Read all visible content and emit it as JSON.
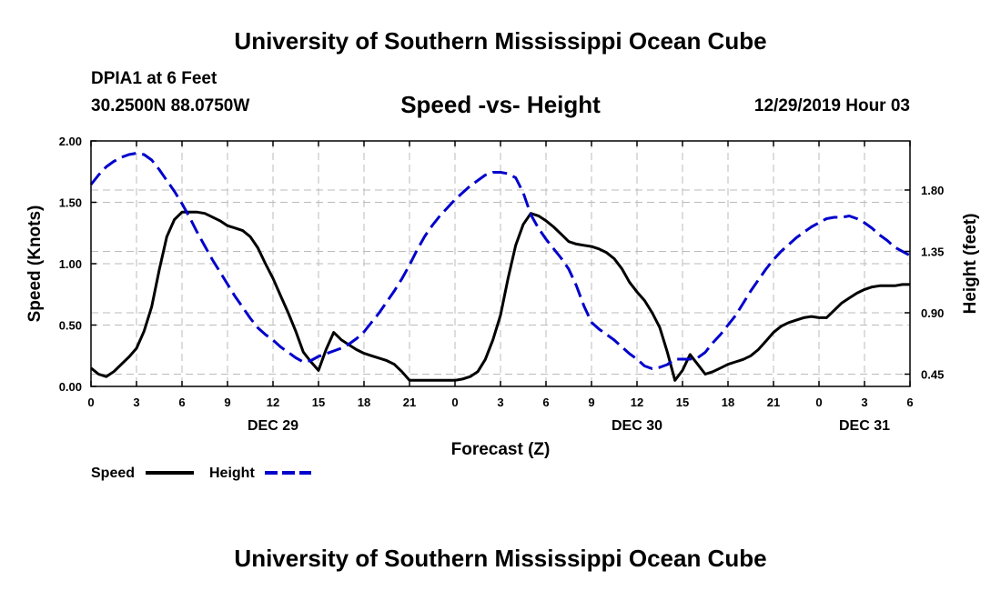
{
  "header": {
    "title": "University of Southern Mississippi Ocean Cube",
    "station": "DPIA1 at 6 Feet",
    "coordinates": "30.2500N 88.0750W",
    "datetime": "12/29/2019 Hour 03"
  },
  "footer": {
    "title": "University of Southern Mississippi Ocean Cube"
  },
  "colors": {
    "speed": "#000000",
    "height": "#0000cc",
    "grid": "#bbbbbb"
  },
  "chart_data": {
    "type": "line",
    "title": "Speed -vs- Height",
    "xlabel": "Forecast (Z)",
    "ylabel": "Speed (Knots)",
    "y2label": "Height (feet)",
    "xlim": [
      0,
      54
    ],
    "ylim": [
      0,
      2.0
    ],
    "y2lim": [
      0.36,
      2.16
    ],
    "grid": true,
    "legend_position": "bottom-left",
    "x_ticks": [
      0,
      3,
      6,
      9,
      12,
      15,
      18,
      21,
      24,
      27,
      30,
      33,
      36,
      39,
      42,
      45,
      48,
      51,
      54
    ],
    "x_tick_labels": [
      "0",
      "3",
      "6",
      "9",
      "12",
      "15",
      "18",
      "21",
      "0",
      "3",
      "6",
      "9",
      "12",
      "15",
      "18",
      "21",
      "0",
      "3",
      "6"
    ],
    "y_ticks": [
      0,
      0.5,
      1.0,
      1.5,
      2.0
    ],
    "y_tick_labels": [
      "0.00",
      "0.50",
      "1.00",
      "1.50",
      "2.00"
    ],
    "y2_ticks": [
      0.45,
      0.9,
      1.35,
      1.8
    ],
    "y2_tick_labels": [
      "0.45",
      "0.90",
      "1.35",
      "1.80"
    ],
    "date_labels": [
      {
        "x": 12,
        "label": "DEC 29"
      },
      {
        "x": 36,
        "label": "DEC 30"
      },
      {
        "x": 51,
        "label": "DEC 31"
      }
    ],
    "series": [
      {
        "name": "Speed",
        "axis": "left",
        "style": "solid",
        "x": [
          0,
          0.5,
          1,
          1.5,
          2,
          2.5,
          3,
          3.5,
          4,
          4.5,
          5,
          5.5,
          6,
          6.5,
          7,
          7.5,
          8,
          8.5,
          9,
          9.5,
          10,
          10.5,
          11,
          11.5,
          12,
          12.5,
          13,
          13.5,
          14,
          14.5,
          15,
          15.5,
          16,
          16.5,
          17,
          17.5,
          18,
          18.5,
          19,
          19.5,
          20,
          20.5,
          21,
          21.5,
          22,
          22.5,
          23,
          23.5,
          24,
          24.5,
          25,
          25.5,
          26,
          26.5,
          27,
          27.5,
          28,
          28.5,
          29,
          29.5,
          30,
          30.5,
          31,
          31.5,
          32,
          32.5,
          33,
          33.5,
          34,
          34.5,
          35,
          35.5,
          36,
          36.5,
          37,
          37.5,
          38,
          38.5,
          39,
          39.5,
          40,
          40.5,
          41,
          41.5,
          42,
          42.5,
          43,
          43.5,
          44,
          44.5,
          45,
          45.5,
          46,
          46.5,
          47,
          47.5,
          48,
          48.5,
          49,
          49.5,
          50,
          50.5,
          51,
          51.5,
          52,
          52.5,
          53,
          53.5,
          54
        ],
        "values": [
          0.15,
          0.1,
          0.08,
          0.12,
          0.18,
          0.24,
          0.31,
          0.45,
          0.65,
          0.95,
          1.22,
          1.36,
          1.42,
          1.42,
          1.42,
          1.41,
          1.38,
          1.35,
          1.31,
          1.29,
          1.27,
          1.22,
          1.13,
          1.0,
          0.88,
          0.74,
          0.6,
          0.45,
          0.28,
          0.2,
          0.13,
          0.3,
          0.44,
          0.38,
          0.34,
          0.3,
          0.27,
          0.25,
          0.23,
          0.21,
          0.18,
          0.12,
          0.05,
          0.05,
          0.05,
          0.05,
          0.05,
          0.05,
          0.05,
          0.06,
          0.08,
          0.12,
          0.22,
          0.38,
          0.58,
          0.88,
          1.15,
          1.32,
          1.41,
          1.39,
          1.35,
          1.3,
          1.24,
          1.18,
          1.16,
          1.15,
          1.14,
          1.12,
          1.09,
          1.04,
          0.96,
          0.85,
          0.77,
          0.7,
          0.6,
          0.48,
          0.28,
          0.05,
          0.13,
          0.26,
          0.18,
          0.1,
          0.12,
          0.15,
          0.18,
          0.2,
          0.22,
          0.25,
          0.3,
          0.37,
          0.44,
          0.49,
          0.52,
          0.54,
          0.56,
          0.57,
          0.56,
          0.56,
          0.62,
          0.68,
          0.72,
          0.76,
          0.79,
          0.81,
          0.82,
          0.82,
          0.82,
          0.83,
          0.83
        ]
      },
      {
        "name": "Height",
        "axis": "right",
        "style": "dashed",
        "x": [
          0,
          0.5,
          1,
          1.5,
          2,
          2.5,
          3,
          3.5,
          4,
          4.5,
          5,
          5.5,
          6,
          6.5,
          7,
          7.5,
          8,
          8.5,
          9,
          9.5,
          10,
          10.5,
          11,
          11.5,
          12,
          12.5,
          13,
          13.5,
          14,
          14.5,
          15,
          15.5,
          16,
          16.5,
          17,
          17.5,
          18,
          18.5,
          19,
          19.5,
          20,
          20.5,
          21,
          21.5,
          22,
          22.5,
          23,
          23.5,
          24,
          24.5,
          25,
          25.5,
          26,
          26.5,
          27,
          27.5,
          28,
          28.5,
          29,
          29.5,
          30,
          30.5,
          31,
          31.5,
          32,
          32.5,
          33,
          33.5,
          34,
          34.5,
          35,
          35.5,
          36,
          36.5,
          37,
          37.5,
          38,
          38.5,
          39,
          39.5,
          40,
          40.5,
          41,
          41.5,
          42,
          42.5,
          43,
          43.5,
          44,
          44.5,
          45,
          45.5,
          46,
          46.5,
          47,
          47.5,
          48,
          48.5,
          49,
          49.5,
          50,
          50.5,
          51,
          51.5,
          52,
          52.5,
          53,
          53.5,
          54
        ],
        "values": [
          1.84,
          1.91,
          1.97,
          2.01,
          2.04,
          2.06,
          2.07,
          2.06,
          2.02,
          1.95,
          1.87,
          1.79,
          1.7,
          1.6,
          1.49,
          1.39,
          1.29,
          1.2,
          1.11,
          1.02,
          0.94,
          0.86,
          0.79,
          0.74,
          0.7,
          0.65,
          0.61,
          0.57,
          0.54,
          0.55,
          0.58,
          0.6,
          0.62,
          0.64,
          0.67,
          0.71,
          0.76,
          0.83,
          0.9,
          0.98,
          1.06,
          1.15,
          1.25,
          1.36,
          1.46,
          1.54,
          1.61,
          1.67,
          1.73,
          1.78,
          1.83,
          1.87,
          1.91,
          1.93,
          1.93,
          1.92,
          1.89,
          1.78,
          1.62,
          1.52,
          1.44,
          1.37,
          1.3,
          1.22,
          1.1,
          0.95,
          0.83,
          0.78,
          0.74,
          0.7,
          0.65,
          0.6,
          0.56,
          0.51,
          0.49,
          0.5,
          0.52,
          0.56,
          0.56,
          0.56,
          0.57,
          0.61,
          0.68,
          0.74,
          0.81,
          0.88,
          0.97,
          1.06,
          1.14,
          1.22,
          1.29,
          1.35,
          1.4,
          1.45,
          1.49,
          1.53,
          1.56,
          1.59,
          1.6,
          1.6,
          1.61,
          1.59,
          1.56,
          1.52,
          1.47,
          1.43,
          1.38,
          1.35,
          1.32
        ]
      }
    ]
  }
}
